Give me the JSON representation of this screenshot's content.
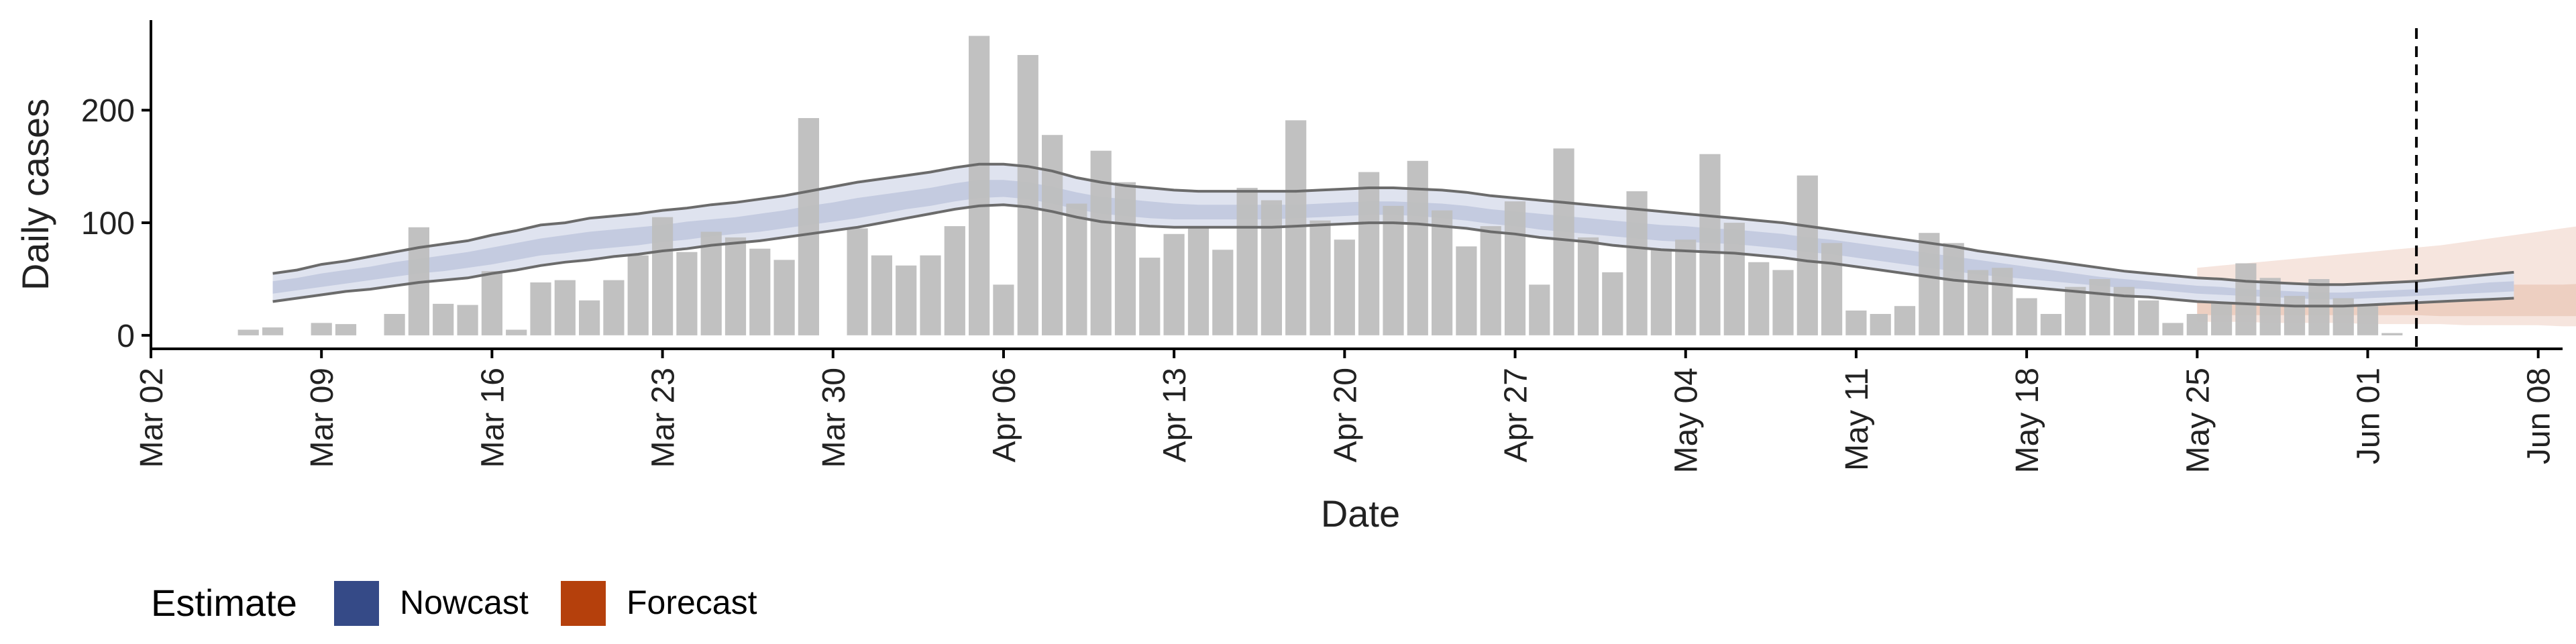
{
  "chart_data": {
    "type": "bar",
    "title": "",
    "xlabel": "Date",
    "ylabel": "Daily cases",
    "ylim": [
      -12,
      280
    ],
    "y_ticks": [
      0,
      100,
      200
    ],
    "x_ticks": [
      {
        "date": "2020-03-02",
        "label": "Mar 02"
      },
      {
        "date": "2020-03-09",
        "label": "Mar 09"
      },
      {
        "date": "2020-03-16",
        "label": "Mar 16"
      },
      {
        "date": "2020-03-23",
        "label": "Mar 23"
      },
      {
        "date": "2020-03-30",
        "label": "Mar 30"
      },
      {
        "date": "2020-04-06",
        "label": "Apr 06"
      },
      {
        "date": "2020-04-13",
        "label": "Apr 13"
      },
      {
        "date": "2020-04-20",
        "label": "Apr 20"
      },
      {
        "date": "2020-04-27",
        "label": "Apr 27"
      },
      {
        "date": "2020-05-04",
        "label": "May 04"
      },
      {
        "date": "2020-05-11",
        "label": "May 11"
      },
      {
        "date": "2020-05-18",
        "label": "May 18"
      },
      {
        "date": "2020-05-25",
        "label": "May 25"
      },
      {
        "date": "2020-06-01",
        "label": "Jun 01"
      },
      {
        "date": "2020-06-08",
        "label": "Jun 08"
      }
    ],
    "xlim": [
      "2020-03-02",
      "2020-06-09"
    ],
    "vline_date": "2020-06-03",
    "legend": {
      "title": "Estimate",
      "position": "bottom-left",
      "items": [
        {
          "label": "Nowcast",
          "color": "#354a87"
        },
        {
          "label": "Forecast",
          "color": "#b5400c"
        }
      ]
    },
    "reported_cases": {
      "start_date": "2020-03-06",
      "values": [
        5,
        7,
        0,
        11,
        10,
        0,
        19,
        96,
        28,
        27,
        57,
        5,
        47,
        49,
        31,
        49,
        71,
        105,
        74,
        92,
        87,
        77,
        67,
        193,
        0,
        95,
        71,
        62,
        71,
        97,
        266,
        45,
        249,
        178,
        117,
        164,
        136,
        69,
        90,
        97,
        76,
        131,
        120,
        191,
        102,
        85,
        145,
        115,
        155,
        111,
        79,
        97,
        119,
        45,
        166,
        87,
        56,
        128,
        77,
        85,
        161,
        100,
        65,
        58,
        142,
        82,
        22,
        19,
        26,
        91,
        82,
        58,
        60,
        33,
        19,
        43,
        50,
        43,
        31,
        11,
        19,
        29,
        64,
        51,
        35,
        50,
        33,
        26,
        2
      ]
    },
    "nowcast": {
      "start_date": "2020-03-07",
      "outer_upper": [
        55,
        58,
        63,
        66,
        70,
        74,
        78,
        81,
        84,
        89,
        93,
        98,
        100,
        104,
        106,
        108,
        111,
        113,
        116,
        118,
        121,
        124,
        128,
        132,
        136,
        139,
        142,
        145,
        149,
        152,
        152,
        150,
        146,
        140,
        136,
        133,
        131,
        129,
        128,
        128,
        128,
        128,
        128,
        129,
        130,
        131,
        131,
        130,
        129,
        127,
        124,
        122,
        120,
        118,
        116,
        114,
        112,
        110,
        108,
        106,
        104,
        102,
        100,
        97,
        94,
        91,
        88,
        85,
        82,
        79,
        75,
        72,
        69,
        66,
        63,
        60,
        57,
        55,
        53,
        51,
        50,
        48,
        47,
        46,
        45,
        45,
        46,
        47,
        48,
        50,
        52,
        54,
        56
      ],
      "outer_lower": [
        30,
        33,
        36,
        39,
        41,
        44,
        47,
        49,
        51,
        55,
        58,
        62,
        65,
        67,
        70,
        72,
        75,
        77,
        80,
        82,
        84,
        87,
        90,
        93,
        96,
        100,
        104,
        108,
        112,
        115,
        116,
        114,
        110,
        105,
        101,
        99,
        97,
        96,
        96,
        96,
        96,
        96,
        97,
        98,
        99,
        100,
        100,
        99,
        97,
        95,
        92,
        90,
        87,
        85,
        83,
        80,
        78,
        76,
        75,
        74,
        73,
        71,
        69,
        66,
        64,
        61,
        58,
        55,
        52,
        49,
        47,
        45,
        43,
        41,
        39,
        37,
        35,
        34,
        32,
        30,
        29,
        28,
        27,
        26,
        26,
        26,
        27,
        28,
        29,
        30,
        31,
        32,
        33
      ],
      "inner_upper": [
        48,
        51,
        55,
        58,
        61,
        65,
        68,
        71,
        74,
        78,
        82,
        86,
        89,
        92,
        94,
        96,
        98,
        101,
        103,
        105,
        108,
        111,
        115,
        118,
        122,
        125,
        128,
        131,
        135,
        138,
        138,
        136,
        132,
        127,
        123,
        121,
        119,
        117,
        116,
        116,
        116,
        116,
        116,
        117,
        118,
        119,
        119,
        118,
        117,
        115,
        112,
        110,
        108,
        106,
        104,
        102,
        100,
        98,
        97,
        95,
        94,
        92,
        90,
        87,
        85,
        82,
        79,
        76,
        73,
        70,
        67,
        64,
        61,
        58,
        55,
        52,
        50,
        48,
        46,
        44,
        43,
        41,
        40,
        39,
        38,
        38,
        39,
        40,
        41,
        43,
        45,
        47,
        48
      ],
      "inner_lower": [
        37,
        40,
        43,
        46,
        49,
        52,
        55,
        57,
        60,
        63,
        67,
        71,
        73,
        76,
        78,
        80,
        83,
        85,
        88,
        90,
        92,
        95,
        98,
        101,
        104,
        108,
        112,
        115,
        119,
        122,
        123,
        121,
        117,
        112,
        108,
        106,
        104,
        103,
        103,
        103,
        103,
        103,
        104,
        105,
        106,
        107,
        107,
        106,
        104,
        102,
        99,
        97,
        94,
        92,
        90,
        88,
        86,
        84,
        83,
        82,
        81,
        79,
        77,
        74,
        72,
        69,
        66,
        63,
        60,
        57,
        54,
        52,
        50,
        48,
        46,
        44,
        42,
        41,
        39,
        37,
        36,
        35,
        34,
        33,
        32,
        32,
        33,
        34,
        35,
        36,
        37,
        38,
        39
      ]
    },
    "forecast": {
      "start_date": "2020-05-25",
      "outer_upper": [
        60,
        62,
        64,
        66,
        68,
        70,
        72,
        74,
        76,
        78,
        80,
        83,
        86,
        89,
        92,
        95,
        98,
        101,
        104,
        107,
        110,
        113,
        116
      ],
      "outer_lower": [
        12,
        12,
        12,
        11,
        11,
        11,
        11,
        10,
        10,
        10,
        10,
        9,
        9,
        9,
        9,
        8,
        8,
        8,
        8,
        7,
        7,
        7,
        6
      ],
      "inner_upper": [
        42,
        42,
        43,
        43,
        43,
        43,
        44,
        44,
        44,
        44,
        44,
        45,
        45,
        45,
        45,
        45,
        46,
        46,
        46,
        46,
        46,
        46,
        46
      ],
      "inner_lower": [
        18,
        18,
        18,
        18,
        18,
        18,
        18,
        18,
        18,
        18,
        17,
        17,
        17,
        17,
        17,
        17,
        17,
        17,
        17,
        17,
        17,
        17,
        17
      ]
    },
    "colors": {
      "bars": "#bebebe",
      "nowcast_outer": "#dfe3ef",
      "nowcast_inner": "#c4cbe0",
      "nowcast_lines": "#6b6b6b",
      "forecast_outer": "#f6e5de",
      "forecast_inner": "#edcfc1",
      "axis": "#000000",
      "vline": "#000000"
    }
  }
}
